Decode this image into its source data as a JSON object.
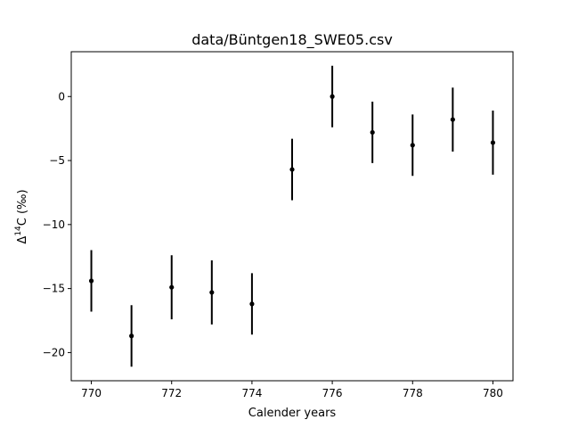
{
  "chart_data": {
    "type": "scatter",
    "title": "data/Büntgen18_SWE05.csv",
    "xlabel": "Calender years",
    "ylabel": {
      "base": "Δ",
      "sup": "14",
      "rest": "C (‰)"
    },
    "xlim": [
      769.5,
      780.5
    ],
    "ylim": [
      -22.2,
      3.5
    ],
    "xticks": [
      770,
      772,
      774,
      776,
      778,
      780
    ],
    "yticks": [
      0,
      -5,
      -10,
      -15,
      -20
    ],
    "ytick_labels": [
      "0",
      "−5",
      "−10",
      "−15",
      "−20"
    ],
    "grid": false,
    "series": [
      {
        "x": [
          770,
          771,
          772,
          773,
          774,
          775,
          776,
          777,
          778,
          779,
          780
        ],
        "y": [
          -14.4,
          -18.7,
          -14.9,
          -15.3,
          -16.2,
          -5.7,
          0.0,
          -2.8,
          -3.8,
          -1.8,
          -3.6
        ],
        "err": [
          2.4,
          2.4,
          2.5,
          2.5,
          2.4,
          2.4,
          2.4,
          2.4,
          2.4,
          2.5,
          2.5
        ]
      }
    ],
    "colors": {
      "marker": "#000000",
      "errorbar": "#000000",
      "axes": "#000000"
    }
  }
}
